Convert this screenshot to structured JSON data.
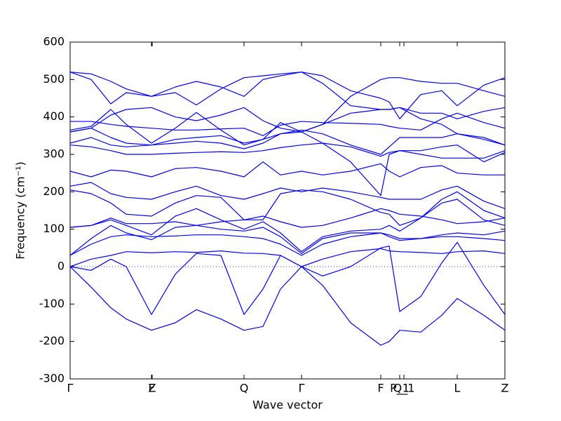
{
  "chart_data": {
    "type": "line",
    "x_label": "Wave vector",
    "y_label": "Frequency (cm⁻¹)",
    "color": "#0000ff",
    "hline": 0,
    "x": [
      0,
      30,
      58,
      80,
      116,
      150,
      180,
      215,
      248,
      275,
      300,
      330,
      360,
      400,
      443,
      455,
      470,
      500,
      530,
      552,
      590,
      620
    ],
    "xlim": [
      0,
      620
    ],
    "xticks": [
      {
        "value": 0,
        "label": "Γ"
      },
      {
        "value": 116,
        "label": "F"
      },
      {
        "value": 117,
        "label": "Z"
      },
      {
        "value": 248,
        "label": "Q"
      },
      {
        "value": 330,
        "label": "Γ"
      },
      {
        "value": 443,
        "label": "F"
      },
      {
        "value": 470,
        "label": "P_1"
      },
      {
        "value": 476,
        "label": "Q_1"
      },
      {
        "value": 552,
        "label": "L"
      },
      {
        "value": 620,
        "label": "Z"
      }
    ],
    "ylim": [
      -300,
      600
    ],
    "yticks": [
      -300,
      -200,
      -100,
      0,
      100,
      200,
      300,
      400,
      500,
      600
    ],
    "series": [
      {
        "values": [
          0,
          -55,
          -110,
          -140,
          -170,
          -150,
          -115,
          -140,
          -170,
          -160,
          -60,
          0,
          -50,
          -150,
          -210,
          -200,
          -170,
          -175,
          -130,
          -85,
          -130,
          -170
        ]
      },
      {
        "values": [
          0,
          -10,
          20,
          0,
          -128,
          -20,
          35,
          30,
          -128,
          -60,
          30,
          0,
          -25,
          0,
          50,
          55,
          -120,
          -80,
          10,
          65,
          -50,
          -128
        ]
      },
      {
        "values": [
          0,
          20,
          30,
          40,
          37,
          40,
          38,
          42,
          36,
          35,
          30,
          0,
          20,
          40,
          48,
          42,
          40,
          38,
          35,
          40,
          42,
          35
        ]
      },
      {
        "values": [
          30,
          60,
          80,
          85,
          80,
          82,
          85,
          85,
          80,
          75,
          60,
          30,
          60,
          80,
          90,
          85,
          75,
          75,
          80,
          80,
          75,
          70
        ]
      },
      {
        "values": [
          30,
          75,
          110,
          90,
          72,
          105,
          110,
          100,
          95,
          105,
          80,
          35,
          75,
          90,
          90,
          80,
          70,
          75,
          85,
          90,
          85,
          95
        ]
      },
      {
        "values": [
          105,
          110,
          125,
          110,
          85,
          135,
          155,
          125,
          100,
          120,
          90,
          40,
          80,
          95,
          100,
          110,
          95,
          130,
          170,
          180,
          125,
          110
        ]
      },
      {
        "values": [
          105,
          110,
          130,
          115,
          115,
          120,
          110,
          120,
          125,
          135,
          120,
          105,
          110,
          130,
          155,
          150,
          140,
          135,
          125,
          115,
          120,
          130
        ]
      },
      {
        "values": [
          205,
          195,
          170,
          140,
          135,
          170,
          190,
          185,
          125,
          125,
          195,
          205,
          200,
          180,
          145,
          140,
          110,
          130,
          180,
          200,
          150,
          130
        ]
      },
      {
        "values": [
          215,
          225,
          195,
          185,
          180,
          200,
          215,
          190,
          180,
          195,
          210,
          200,
          210,
          200,
          185,
          180,
          180,
          180,
          205,
          215,
          175,
          155
        ]
      },
      {
        "values": [
          255,
          240,
          258,
          255,
          240,
          262,
          265,
          255,
          240,
          280,
          245,
          255,
          245,
          255,
          275,
          255,
          240,
          265,
          270,
          250,
          245,
          245
        ]
      },
      {
        "values": [
          325,
          320,
          310,
          300,
          300,
          303,
          305,
          307,
          305,
          310,
          318,
          325,
          330,
          320,
          295,
          305,
          310,
          310,
          320,
          325,
          280,
          305
        ]
      },
      {
        "values": [
          330,
          345,
          325,
          320,
          325,
          330,
          335,
          330,
          315,
          330,
          355,
          360,
          330,
          280,
          190,
          300,
          310,
          300,
          290,
          290,
          290,
          310
        ]
      },
      {
        "values": [
          360,
          370,
          345,
          330,
          325,
          340,
          345,
          350,
          330,
          340,
          355,
          365,
          355,
          325,
          300,
          320,
          345,
          345,
          345,
          355,
          340,
          325
        ]
      },
      {
        "values": [
          365,
          375,
          420,
          380,
          330,
          370,
          412,
          365,
          325,
          340,
          385,
          360,
          380,
          410,
          420,
          420,
          425,
          395,
          380,
          355,
          345,
          325
        ]
      },
      {
        "values": [
          388,
          388,
          380,
          375,
          370,
          365,
          365,
          368,
          370,
          350,
          378,
          388,
          385,
          383,
          380,
          375,
          370,
          365,
          395,
          410,
          385,
          370
        ]
      },
      {
        "values": [
          360,
          370,
          405,
          420,
          425,
          400,
          390,
          405,
          425,
          390,
          370,
          360,
          380,
          455,
          500,
          505,
          505,
          495,
          490,
          490,
          470,
          455
        ]
      },
      {
        "values": [
          520,
          500,
          435,
          465,
          455,
          480,
          495,
          480,
          455,
          500,
          510,
          520,
          490,
          430,
          420,
          420,
          425,
          410,
          410,
          395,
          415,
          425
        ]
      },
      {
        "values": [
          520,
          515,
          495,
          475,
          455,
          465,
          432,
          475,
          505,
          510,
          515,
          520,
          510,
          470,
          450,
          440,
          395,
          460,
          470,
          430,
          485,
          505
        ]
      }
    ]
  }
}
